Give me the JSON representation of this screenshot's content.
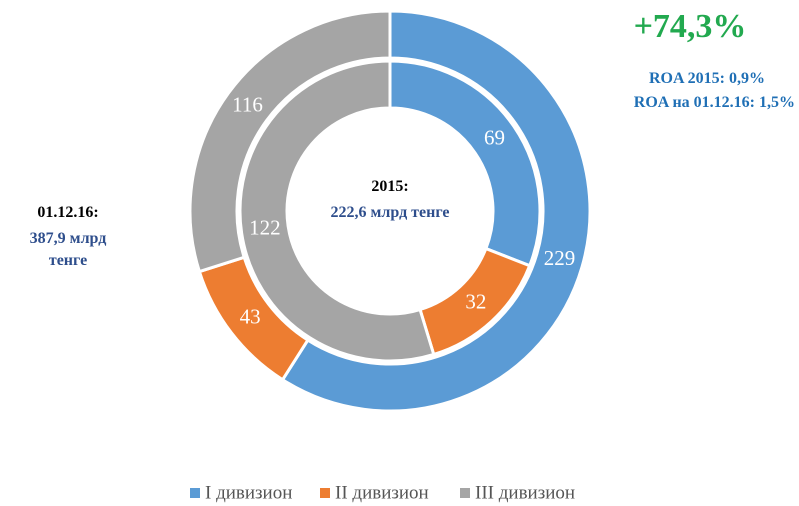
{
  "chart_data": {
    "type": "donut",
    "categories": [
      "I дивизион",
      "II дивизион",
      "III дивизион"
    ],
    "colors": [
      "#5b9bd5",
      "#ed7d31",
      "#a5a5a5"
    ],
    "series": [
      {
        "name": "01.12.16:",
        "total_label": "387,9 млрд тенге",
        "values": [
          229,
          43,
          116
        ]
      },
      {
        "name": "2015:",
        "total_label": "222,6 млрд тенге",
        "values": [
          69,
          32,
          122
        ]
      }
    ],
    "annotations": [
      "+74,3%",
      "ROA 2015: 0,9%",
      "ROA на 01.12.16: 1,5%"
    ]
  }
}
